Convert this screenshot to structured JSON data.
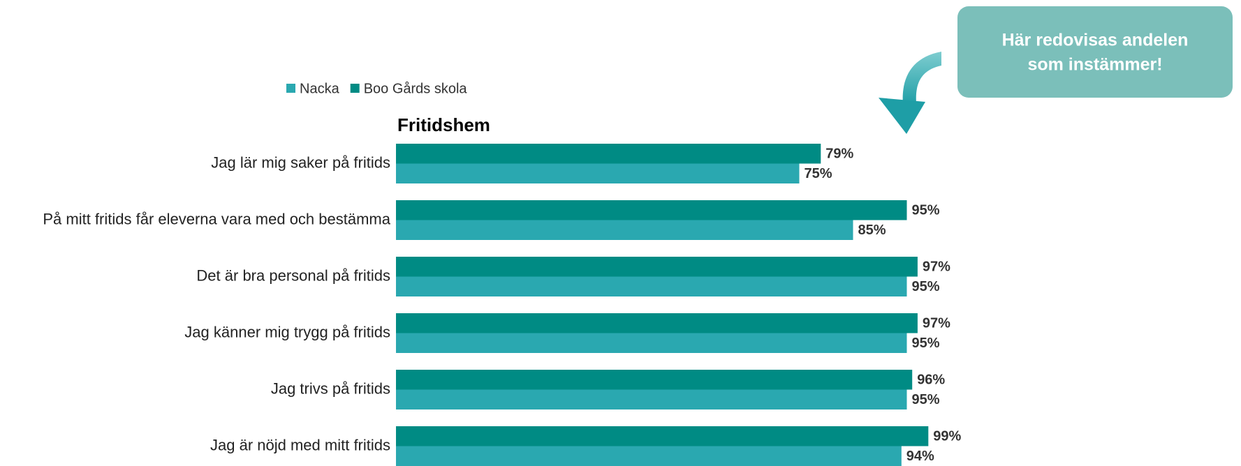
{
  "chart_data": {
    "type": "bar",
    "orientation": "horizontal",
    "title": "Fritidshem",
    "categories": [
      "Jag lär mig saker på fritids",
      "På mitt fritids får eleverna vara med och bestämma",
      "Det är bra personal på fritids",
      "Jag känner mig trygg på fritids",
      "Jag trivs på fritids",
      "Jag är nöjd med mitt fritids"
    ],
    "series": [
      {
        "name": "Nacka",
        "color": "#2aa8b0",
        "values": [
          75,
          85,
          95,
          95,
          95,
          94
        ],
        "value_labels": [
          "75%",
          "85%",
          "95%",
          "95%",
          "95%",
          "94%"
        ]
      },
      {
        "name": "Boo Gårds skola",
        "color": "#008b84",
        "values": [
          79,
          95,
          97,
          97,
          96,
          99
        ],
        "value_labels": [
          "79%",
          "95%",
          "97%",
          "97%",
          "96%",
          "99%"
        ]
      }
    ],
    "annotation": [
      "Här redovisas andelen",
      "som instämmer!"
    ]
  }
}
